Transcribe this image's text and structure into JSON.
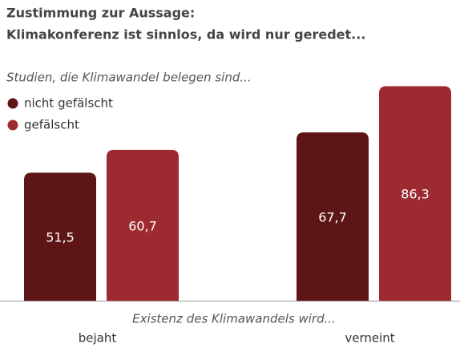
{
  "chart_data": {
    "type": "bar",
    "title": "Zustimmung zur Aussage:",
    "subtitle": "Klimakonferenz ist sinnlos, da wird nur geredet...",
    "legend_title": "Studien, die Klimawandel belegen sind...",
    "x_label": "Existenz des Klimawandels wird...",
    "categories": [
      "bejaht",
      "verneint"
    ],
    "series": [
      {
        "name": "nicht gefälscht",
        "color": "#5e1515",
        "values": [
          51.5,
          67.7
        ],
        "value_labels": [
          "51,5",
          "67,7"
        ]
      },
      {
        "name": "gefälscht",
        "color": "#9e2a31",
        "values": [
          60.7,
          86.3
        ],
        "value_labels": [
          "60,7",
          "86,3"
        ]
      }
    ],
    "legend": "top-left"
  }
}
